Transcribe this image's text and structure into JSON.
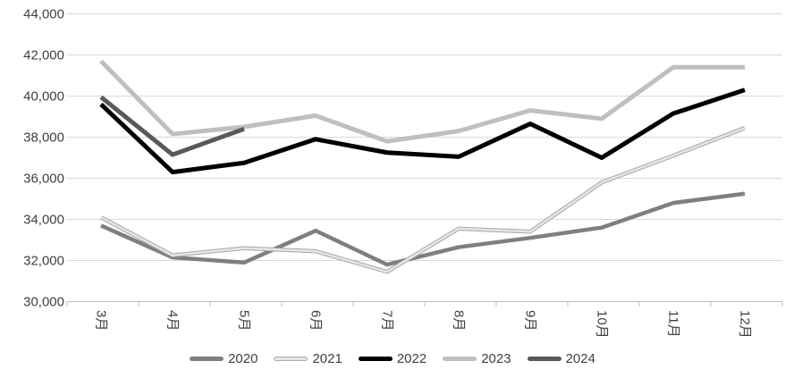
{
  "chart_data": {
    "type": "line",
    "title": "",
    "xlabel": "",
    "ylabel": "",
    "categories": [
      "3月",
      "4月",
      "5月",
      "6月",
      "7月",
      "8月",
      "9月",
      "10月",
      "11月",
      "12月"
    ],
    "series": [
      {
        "name": "2020",
        "color": "#7f7f7f",
        "width": 4.5,
        "values": [
          33700,
          32150,
          31900,
          33450,
          31800,
          32650,
          33100,
          33600,
          34800,
          35250
        ]
      },
      {
        "name": "2021",
        "color": "#e6e6e6",
        "outline": "#a6a6a6",
        "width": 4.5,
        "values": [
          34100,
          32250,
          32600,
          32450,
          31450,
          33550,
          33400,
          35800,
          37100,
          38450
        ]
      },
      {
        "name": "2022",
        "color": "#000000",
        "width": 5,
        "values": [
          39600,
          36300,
          36750,
          37900,
          37250,
          37050,
          38650,
          37000,
          39150,
          40300
        ]
      },
      {
        "name": "2023",
        "color": "#bfbfbf",
        "width": 5,
        "values": [
          41700,
          38150,
          38500,
          39050,
          37800,
          38300,
          39300,
          38900,
          41400,
          41400
        ]
      },
      {
        "name": "2024",
        "color": "#595959",
        "width": 5,
        "values": [
          39950,
          37150,
          38400
        ]
      }
    ],
    "ylim": [
      30000,
      44000
    ],
    "y_tick_step": 2000,
    "y_tick_labels": [
      "30,000",
      "32,000",
      "34,000",
      "36,000",
      "38,000",
      "40,000",
      "42,000",
      "44,000"
    ],
    "grid": "horizontal",
    "legend_position": "bottom",
    "legend_entries": [
      "2020",
      "2021",
      "2022",
      "2023",
      "2024"
    ]
  },
  "colors": {
    "background": "#ffffff",
    "gridline": "#d9d9d9",
    "axis_line": "#bfbfbf",
    "tick_text": "#404040"
  }
}
